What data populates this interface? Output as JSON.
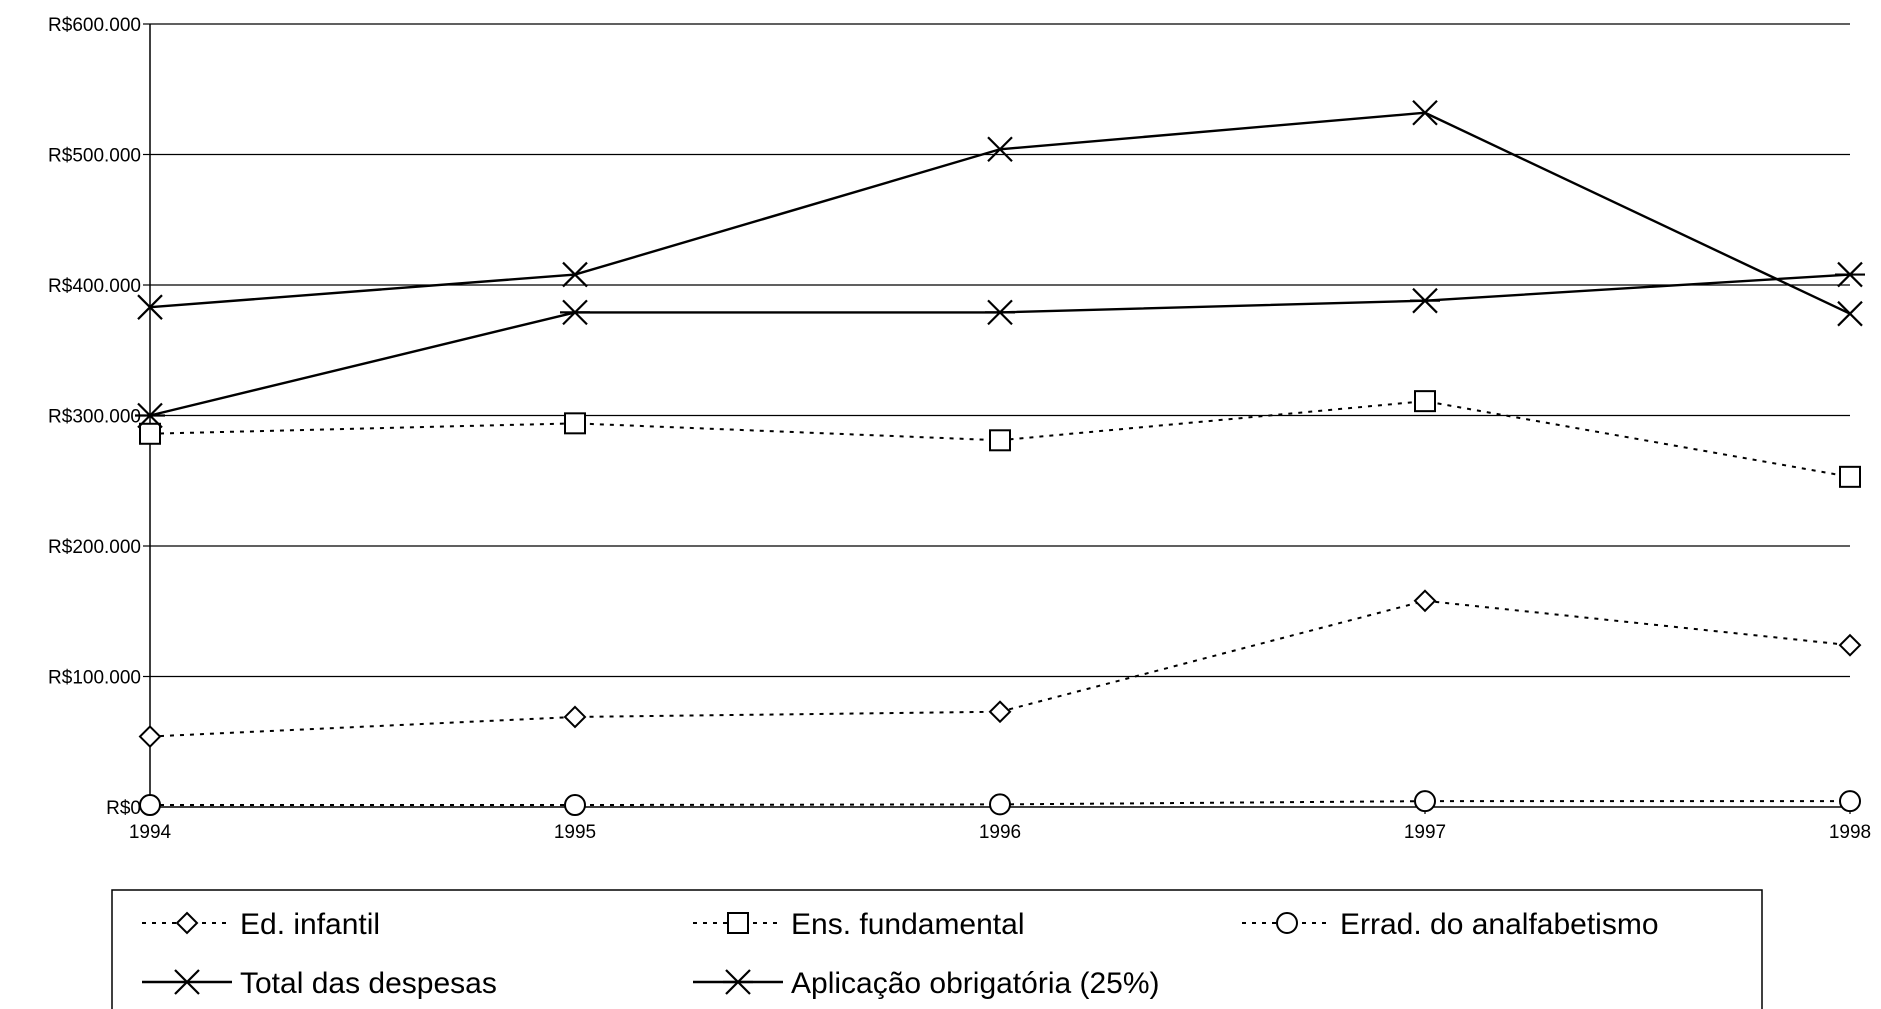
{
  "chart_data": {
    "type": "line",
    "title": "",
    "xlabel": "",
    "ylabel": "",
    "x": [
      "1994",
      "1995",
      "1996",
      "1997",
      "1998"
    ],
    "ylim": [
      0,
      600000
    ],
    "yticks": [
      "R$0",
      "R$100.000",
      "R$200.000",
      "R$300.000",
      "R$400.000",
      "R$500.000",
      "R$600.000"
    ],
    "grid": true,
    "legend_position": "bottom",
    "series": [
      {
        "name": "Ed. infantil",
        "values": [
          54000,
          69000,
          73000,
          158000,
          124000
        ],
        "style": "dotted",
        "marker": "diamond"
      },
      {
        "name": "Ens. fundamental",
        "values": [
          286000,
          294000,
          281000,
          311000,
          253000
        ],
        "style": "dotted",
        "marker": "square"
      },
      {
        "name": "Errad. do analfabetismo",
        "values": [
          1500,
          1500,
          2000,
          4500,
          4500
        ],
        "style": "dotted",
        "marker": "circle"
      },
      {
        "name": "Total das despesas",
        "values": [
          383000,
          408000,
          504000,
          532000,
          378000
        ],
        "style": "solid",
        "marker": "x"
      },
      {
        "name": "Aplicação obrigatória (25%)",
        "values": [
          300000,
          379000,
          379000,
          388000,
          408000
        ],
        "style": "solid",
        "marker": "star"
      }
    ]
  }
}
